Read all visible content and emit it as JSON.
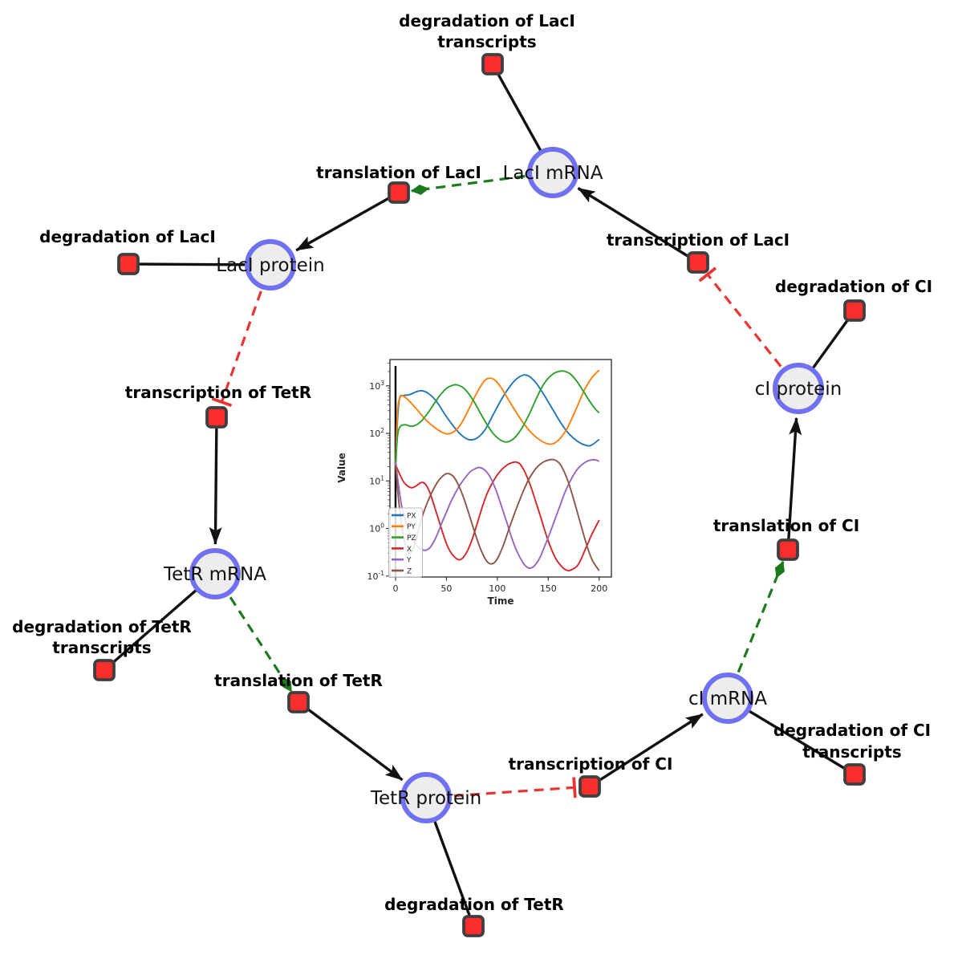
{
  "diagram": {
    "species": [
      {
        "id": "laci-mrna",
        "label": "LacI mRNA"
      },
      {
        "id": "laci-protein",
        "label": "LacI protein"
      },
      {
        "id": "tetr-mrna",
        "label": "TetR mRNA"
      },
      {
        "id": "tetr-protein",
        "label": "TetR protein"
      },
      {
        "id": "ci-mrna",
        "label": "cI mRNA"
      },
      {
        "id": "ci-protein",
        "label": "cI protein"
      }
    ],
    "reactions": [
      {
        "id": "degradation-of-laci-transcripts",
        "lines": [
          "degradation of LacI",
          "transcripts"
        ]
      },
      {
        "id": "translation-of-laci",
        "lines": [
          "translation of LacI"
        ]
      },
      {
        "id": "degradation-of-laci",
        "lines": [
          "degradation of LacI"
        ]
      },
      {
        "id": "transcription-of-laci",
        "lines": [
          "transcription of LacI"
        ]
      },
      {
        "id": "degradation-of-ci",
        "lines": [
          "degradation of CI"
        ]
      },
      {
        "id": "transcription-of-tetr",
        "lines": [
          "transcription of TetR"
        ]
      },
      {
        "id": "degradation-of-tetr-transcripts",
        "lines": [
          "degradation of TetR",
          "transcripts"
        ]
      },
      {
        "id": "translation-of-tetr",
        "lines": [
          "translation of TetR"
        ]
      },
      {
        "id": "degradation-of-tetr",
        "lines": [
          "degradation of TetR"
        ]
      },
      {
        "id": "transcription-of-ci",
        "lines": [
          "transcription of CI"
        ]
      },
      {
        "id": "degradation-of-ci-transcripts",
        "lines": [
          "degradation of CI",
          "transcripts"
        ]
      },
      {
        "id": "translation-of-ci",
        "lines": [
          "translation of CI"
        ]
      }
    ],
    "colors": {
      "species_fill": "#ededed",
      "species_border": "#7070f0",
      "reaction_fill": "#fb2e2e",
      "reaction_border": "#3f3f3f",
      "edge_black": "#111111",
      "edge_modifier_green": "#1c7a1c",
      "edge_inhibition_red": "#e93434"
    }
  },
  "chart_data": {
    "type": "line",
    "title": "",
    "xlabel": "Time",
    "ylabel": "Value",
    "yscale": "log",
    "grid": false,
    "legend_position": "lower-left",
    "x_ticks": [
      0,
      50,
      100,
      150,
      200
    ],
    "y_tick_exponents": [
      -1,
      0,
      1,
      2,
      3
    ],
    "xlim": [
      -5.5,
      212
    ],
    "ylim_log": [
      -1.02,
      3.554
    ],
    "vline_x": 0,
    "series": [
      {
        "name": "PX",
        "color": "#1f77b4",
        "points": [
          [
            0,
            20
          ],
          [
            2,
            200
          ],
          [
            4,
            560
          ],
          [
            8,
            625
          ],
          [
            14,
            655
          ],
          [
            20,
            745
          ],
          [
            26,
            790
          ],
          [
            32,
            700
          ],
          [
            40,
            480
          ],
          [
            48,
            260
          ],
          [
            56,
            150
          ],
          [
            64,
            95
          ],
          [
            72,
            74
          ],
          [
            80,
            80
          ],
          [
            88,
            120
          ],
          [
            96,
            250
          ],
          [
            104,
            520
          ],
          [
            112,
            950
          ],
          [
            118,
            1350
          ],
          [
            125,
            1680
          ],
          [
            131,
            1600
          ],
          [
            138,
            1150
          ],
          [
            146,
            640
          ],
          [
            154,
            330
          ],
          [
            162,
            170
          ],
          [
            170,
            100
          ],
          [
            178,
            70
          ],
          [
            186,
            57
          ],
          [
            192,
            56
          ],
          [
            200,
            75
          ]
        ]
      },
      {
        "name": "PY",
        "color": "#ff7f0e",
        "points": [
          [
            0,
            20
          ],
          [
            2,
            300
          ],
          [
            5,
            600
          ],
          [
            10,
            560
          ],
          [
            16,
            420
          ],
          [
            22,
            300
          ],
          [
            30,
            190
          ],
          [
            38,
            135
          ],
          [
            46,
            105
          ],
          [
            52,
            98
          ],
          [
            58,
            112
          ],
          [
            64,
            155
          ],
          [
            70,
            265
          ],
          [
            76,
            490
          ],
          [
            82,
            860
          ],
          [
            88,
            1320
          ],
          [
            93,
            1450
          ],
          [
            98,
            1300
          ],
          [
            104,
            900
          ],
          [
            110,
            550
          ],
          [
            118,
            290
          ],
          [
            126,
            160
          ],
          [
            134,
            100
          ],
          [
            142,
            72
          ],
          [
            150,
            60
          ],
          [
            156,
            62
          ],
          [
            162,
            80
          ],
          [
            168,
            122
          ],
          [
            174,
            225
          ],
          [
            180,
            440
          ],
          [
            186,
            860
          ],
          [
            193,
            1500
          ],
          [
            200,
            2150
          ]
        ]
      },
      {
        "name": "PZ",
        "color": "#2ca02c",
        "points": [
          [
            0,
            20
          ],
          [
            2,
            90
          ],
          [
            5,
            142
          ],
          [
            10,
            152
          ],
          [
            15,
            141
          ],
          [
            20,
            149
          ],
          [
            26,
            188
          ],
          [
            32,
            272
          ],
          [
            38,
            425
          ],
          [
            44,
            645
          ],
          [
            50,
            885
          ],
          [
            56,
            1030
          ],
          [
            60,
            1052
          ],
          [
            66,
            930
          ],
          [
            72,
            680
          ],
          [
            78,
            430
          ],
          [
            84,
            252
          ],
          [
            90,
            152
          ],
          [
            96,
            99
          ],
          [
            102,
            75
          ],
          [
            108,
            66
          ],
          [
            114,
            72
          ],
          [
            120,
            96
          ],
          [
            126,
            152
          ],
          [
            132,
            272
          ],
          [
            138,
            525
          ],
          [
            144,
            955
          ],
          [
            150,
            1455
          ],
          [
            156,
            1855
          ],
          [
            162,
            2050
          ],
          [
            167,
            2000
          ],
          [
            172,
            1750
          ],
          [
            178,
            1250
          ],
          [
            184,
            800
          ],
          [
            190,
            500
          ],
          [
            196,
            330
          ],
          [
            200,
            272
          ]
        ]
      },
      {
        "name": "X",
        "color": "#d62728",
        "points": [
          [
            0,
            22
          ],
          [
            4,
            14
          ],
          [
            8,
            9.5
          ],
          [
            12,
            7.8
          ],
          [
            16,
            7.2
          ],
          [
            20,
            7.8
          ],
          [
            24,
            9
          ],
          [
            27,
            9.3
          ],
          [
            30,
            8.2
          ],
          [
            34,
            5.5
          ],
          [
            38,
            3
          ],
          [
            42,
            1.6
          ],
          [
            46,
            0.85
          ],
          [
            50,
            0.48
          ],
          [
            54,
            0.32
          ],
          [
            58,
            0.25
          ],
          [
            62,
            0.22
          ],
          [
            66,
            0.24
          ],
          [
            70,
            0.32
          ],
          [
            74,
            0.5
          ],
          [
            78,
            0.9
          ],
          [
            82,
            1.7
          ],
          [
            86,
            3.2
          ],
          [
            90,
            5.5
          ],
          [
            95,
            9
          ],
          [
            100,
            13.5
          ],
          [
            105,
            18
          ],
          [
            110,
            22
          ],
          [
            115,
            24.5
          ],
          [
            118,
            25
          ],
          [
            122,
            23
          ],
          [
            126,
            17
          ],
          [
            130,
            11
          ],
          [
            134,
            6.5
          ],
          [
            138,
            3.5
          ],
          [
            142,
            1.9
          ],
          [
            146,
            1
          ],
          [
            150,
            0.55
          ],
          [
            154,
            0.33
          ],
          [
            158,
            0.22
          ],
          [
            162,
            0.17
          ],
          [
            166,
            0.14
          ],
          [
            170,
            0.13
          ],
          [
            174,
            0.14
          ],
          [
            178,
            0.16
          ],
          [
            182,
            0.22
          ],
          [
            186,
            0.35
          ],
          [
            190,
            0.55
          ],
          [
            194,
            0.85
          ],
          [
            200,
            1.5
          ]
        ]
      },
      {
        "name": "Y",
        "color": "#9467bd",
        "points": [
          [
            0,
            25
          ],
          [
            3,
            8
          ],
          [
            6,
            3
          ],
          [
            10,
            1.4
          ],
          [
            14,
            0.8
          ],
          [
            18,
            0.55
          ],
          [
            22,
            0.42
          ],
          [
            26,
            0.36
          ],
          [
            30,
            0.35
          ],
          [
            34,
            0.4
          ],
          [
            38,
            0.55
          ],
          [
            42,
            0.85
          ],
          [
            46,
            1.4
          ],
          [
            50,
            2.2
          ],
          [
            54,
            3.5
          ],
          [
            58,
            5.2
          ],
          [
            62,
            7.5
          ],
          [
            66,
            10
          ],
          [
            70,
            13
          ],
          [
            74,
            16
          ],
          [
            78,
            18
          ],
          [
            82,
            19.2
          ],
          [
            86,
            18
          ],
          [
            90,
            15
          ],
          [
            94,
            11
          ],
          [
            98,
            7
          ],
          [
            102,
            4
          ],
          [
            106,
            2.2
          ],
          [
            110,
            1.2
          ],
          [
            114,
            0.65
          ],
          [
            118,
            0.38
          ],
          [
            122,
            0.25
          ],
          [
            126,
            0.18
          ],
          [
            130,
            0.15
          ],
          [
            134,
            0.15
          ],
          [
            138,
            0.18
          ],
          [
            142,
            0.25
          ],
          [
            146,
            0.4
          ],
          [
            150,
            0.65
          ],
          [
            154,
            1.1
          ],
          [
            158,
            1.9
          ],
          [
            162,
            3.2
          ],
          [
            166,
            5.5
          ],
          [
            170,
            8.5
          ],
          [
            174,
            12.5
          ],
          [
            178,
            17
          ],
          [
            182,
            21
          ],
          [
            186,
            24.5
          ],
          [
            190,
            27
          ],
          [
            194,
            28
          ],
          [
            197,
            27.5
          ],
          [
            200,
            26
          ]
        ]
      },
      {
        "name": "Z",
        "color": "#8c564b",
        "points": [
          [
            0,
            22
          ],
          [
            3,
            4
          ],
          [
            6,
            1.2
          ],
          [
            9,
            0.5
          ],
          [
            12,
            0.33
          ],
          [
            15,
            0.3
          ],
          [
            18,
            0.42
          ],
          [
            21,
            0.7
          ],
          [
            24,
            1.2
          ],
          [
            27,
            2
          ],
          [
            30,
            3
          ],
          [
            34,
            4.8
          ],
          [
            38,
            7.2
          ],
          [
            42,
            10
          ],
          [
            46,
            12.5
          ],
          [
            50,
            14.2
          ],
          [
            54,
            13.8
          ],
          [
            58,
            11.5
          ],
          [
            62,
            8
          ],
          [
            66,
            5
          ],
          [
            70,
            2.8
          ],
          [
            74,
            1.5
          ],
          [
            78,
            0.8
          ],
          [
            82,
            0.45
          ],
          [
            86,
            0.28
          ],
          [
            90,
            0.2
          ],
          [
            94,
            0.18
          ],
          [
            98,
            0.2
          ],
          [
            102,
            0.28
          ],
          [
            106,
            0.45
          ],
          [
            110,
            0.8
          ],
          [
            114,
            1.4
          ],
          [
            118,
            2.4
          ],
          [
            122,
            4
          ],
          [
            126,
            6.5
          ],
          [
            130,
            10
          ],
          [
            134,
            14
          ],
          [
            138,
            18.5
          ],
          [
            142,
            22.5
          ],
          [
            146,
            25.5
          ],
          [
            150,
            27.5
          ],
          [
            154,
            28.2
          ],
          [
            158,
            26.5
          ],
          [
            162,
            22
          ],
          [
            166,
            15
          ],
          [
            170,
            9
          ],
          [
            174,
            4.8
          ],
          [
            178,
            2.4
          ],
          [
            182,
            1.2
          ],
          [
            186,
            0.6
          ],
          [
            190,
            0.32
          ],
          [
            194,
            0.2
          ],
          [
            200,
            0.13
          ]
        ]
      }
    ]
  }
}
